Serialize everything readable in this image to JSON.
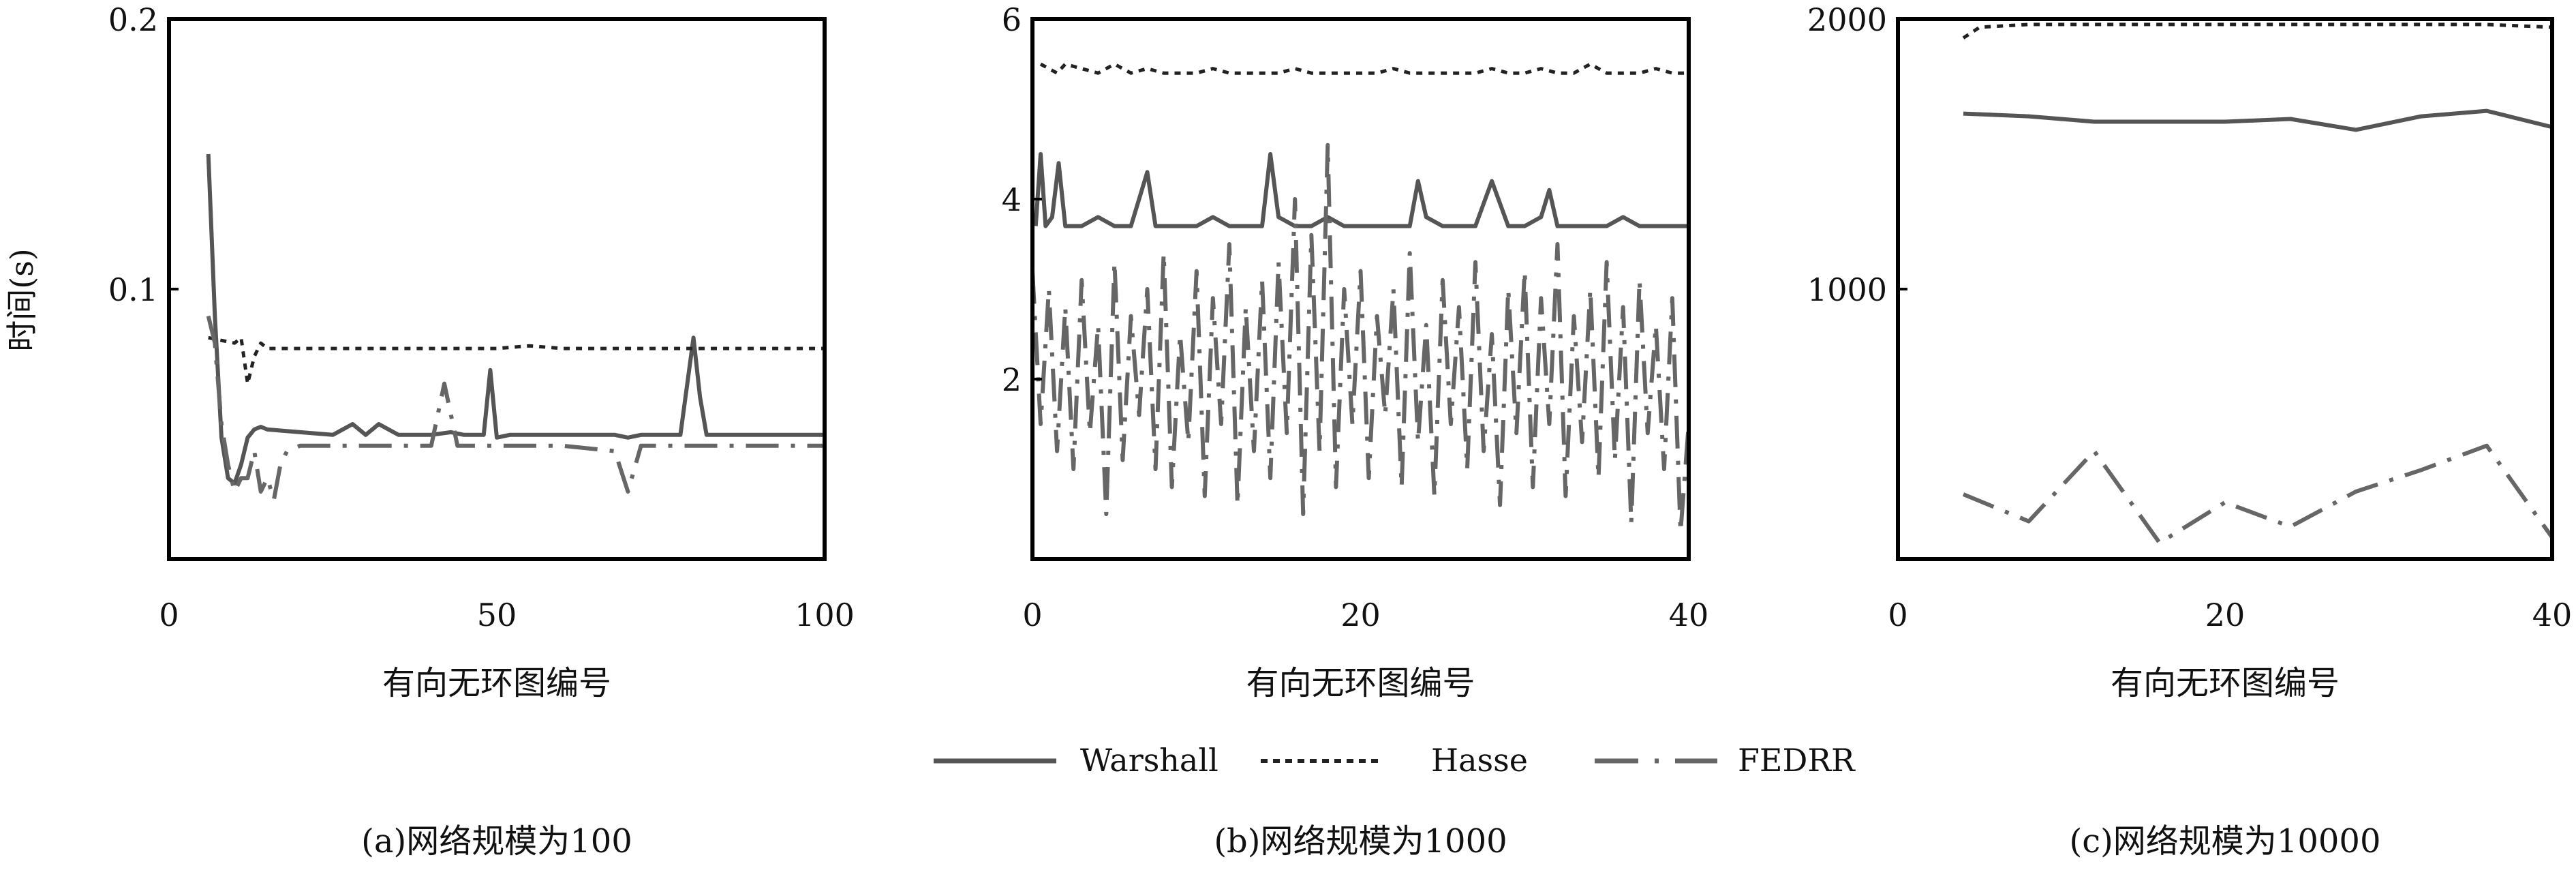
{
  "figure": {
    "ylabel": "时间(s)",
    "legend": [
      {
        "name": "Warshall",
        "style": "solid"
      },
      {
        "name": "Hasse",
        "style": "dotted"
      },
      {
        "name": "FEDRR",
        "style": "dashdot"
      }
    ],
    "colors": {
      "Warshall": "#555555",
      "Hasse": "#222222",
      "FEDRR": "#666666",
      "frame": "#000000"
    }
  },
  "chart_data": [
    {
      "type": "line",
      "title": "(a)网络规模为100",
      "xlabel": "有向无环图编号",
      "ylabel": "时间(s)",
      "xlim": [
        0,
        100
      ],
      "ylim": [
        0,
        0.2
      ],
      "xticks": [
        "0",
        "50",
        "100"
      ],
      "yticks": [
        {
          "v": 0.1,
          "label": "0.1"
        },
        {
          "v": 0.2,
          "label": "0.2"
        }
      ],
      "series": [
        {
          "name": "Warshall",
          "x": [
            6,
            7,
            8,
            9,
            10,
            11,
            12,
            13,
            14,
            15,
            20,
            25,
            28,
            30,
            32,
            35,
            40,
            43,
            45,
            48,
            49,
            50,
            52,
            55,
            60,
            65,
            68,
            70,
            72,
            75,
            78,
            80,
            81,
            82,
            85,
            90,
            95,
            100
          ],
          "y": [
            0.15,
            0.09,
            0.045,
            0.03,
            0.028,
            0.035,
            0.045,
            0.048,
            0.049,
            0.048,
            0.047,
            0.046,
            0.05,
            0.046,
            0.05,
            0.046,
            0.046,
            0.047,
            0.046,
            0.046,
            0.07,
            0.045,
            0.046,
            0.046,
            0.046,
            0.046,
            0.046,
            0.045,
            0.046,
            0.046,
            0.046,
            0.082,
            0.06,
            0.046,
            0.046,
            0.046,
            0.046,
            0.046
          ]
        },
        {
          "name": "Hasse",
          "x": [
            6,
            10,
            11,
            12,
            13,
            14,
            15,
            16,
            20,
            30,
            40,
            50,
            55,
            60,
            70,
            80,
            90,
            100
          ],
          "y": [
            0.082,
            0.08,
            0.082,
            0.065,
            0.075,
            0.08,
            0.078,
            0.078,
            0.078,
            0.078,
            0.078,
            0.078,
            0.079,
            0.078,
            0.078,
            0.078,
            0.078,
            0.078
          ]
        },
        {
          "name": "FEDRR",
          "x": [
            6,
            7,
            8,
            9,
            10,
            11,
            12,
            13,
            14,
            15,
            16,
            17,
            18,
            20,
            30,
            40,
            42,
            44,
            50,
            60,
            68,
            70,
            72,
            75,
            80,
            90,
            100
          ],
          "y": [
            0.09,
            0.08,
            0.05,
            0.035,
            0.025,
            0.03,
            0.03,
            0.04,
            0.025,
            0.03,
            0.022,
            0.035,
            0.04,
            0.042,
            0.042,
            0.042,
            0.065,
            0.042,
            0.042,
            0.042,
            0.04,
            0.025,
            0.042,
            0.042,
            0.042,
            0.042,
            0.042
          ]
        }
      ]
    },
    {
      "type": "line",
      "title": "(b)网络规模为1000",
      "xlabel": "有向无环图编号",
      "xlim": [
        0,
        40
      ],
      "ylim": [
        0,
        6
      ],
      "xticks": [
        "0",
        "20",
        "40"
      ],
      "yticks": [
        {
          "v": 2,
          "label": "2"
        },
        {
          "v": 4,
          "label": "4"
        },
        {
          "v": 6,
          "label": "6"
        }
      ],
      "series": [
        {
          "name": "Warshall",
          "x": [
            0.2,
            0.5,
            0.8,
            1.2,
            1.6,
            2,
            3,
            4,
            5,
            6,
            7,
            7.5,
            8,
            9,
            10,
            11,
            12,
            13,
            14,
            14.5,
            15,
            16,
            17,
            18,
            19,
            20,
            21,
            22,
            23,
            23.5,
            24,
            25,
            26,
            27,
            28,
            29,
            30,
            31,
            31.5,
            32,
            33,
            34,
            35,
            36,
            37,
            38,
            39,
            40
          ],
          "y": [
            3.7,
            4.5,
            3.7,
            3.8,
            4.4,
            3.7,
            3.7,
            3.8,
            3.7,
            3.7,
            4.3,
            3.7,
            3.7,
            3.7,
            3.7,
            3.8,
            3.7,
            3.7,
            3.7,
            4.5,
            3.8,
            3.7,
            3.7,
            3.8,
            3.7,
            3.7,
            3.7,
            3.7,
            3.7,
            4.2,
            3.8,
            3.7,
            3.7,
            3.7,
            4.2,
            3.7,
            3.7,
            3.8,
            4.1,
            3.7,
            3.7,
            3.7,
            3.7,
            3.8,
            3.7,
            3.7,
            3.7,
            3.7
          ]
        },
        {
          "name": "Hasse",
          "x": [
            0.5,
            1.5,
            2,
            3,
            4,
            5,
            6,
            7,
            8,
            9,
            10,
            11,
            12,
            13,
            14,
            15,
            16,
            17,
            18,
            19,
            20,
            21,
            22,
            23,
            24,
            25,
            26,
            27,
            28,
            29,
            30,
            31,
            32,
            33,
            34,
            35,
            36,
            37,
            38,
            39,
            40
          ],
          "y": [
            5.5,
            5.4,
            5.5,
            5.45,
            5.4,
            5.5,
            5.4,
            5.45,
            5.4,
            5.4,
            5.4,
            5.45,
            5.4,
            5.4,
            5.4,
            5.4,
            5.45,
            5.4,
            5.4,
            5.4,
            5.4,
            5.4,
            5.45,
            5.4,
            5.4,
            5.4,
            5.4,
            5.4,
            5.45,
            5.4,
            5.4,
            5.45,
            5.4,
            5.4,
            5.5,
            5.4,
            5.4,
            5.4,
            5.45,
            5.4,
            5.4
          ]
        },
        {
          "name": "FEDRR",
          "x": [
            0,
            0.5,
            1,
            1.5,
            2,
            2.5,
            3,
            3.5,
            4,
            4.5,
            5,
            5.5,
            6,
            6.5,
            7,
            7.5,
            8,
            8.5,
            9,
            9.5,
            10,
            10.5,
            11,
            11.5,
            12,
            12.5,
            13,
            13.5,
            14,
            14.5,
            15,
            15.5,
            16,
            16.5,
            17,
            17.5,
            18,
            18.5,
            19,
            19.5,
            20,
            20.5,
            21,
            21.5,
            22,
            22.5,
            23,
            23.5,
            24,
            24.5,
            25,
            25.5,
            26,
            26.5,
            27,
            27.5,
            28,
            28.5,
            29,
            29.5,
            30,
            30.5,
            31,
            31.5,
            32,
            32.5,
            33,
            33.5,
            34,
            34.5,
            35,
            35.5,
            36,
            36.5,
            37,
            37.5,
            38,
            38.5,
            39,
            39.5,
            40
          ],
          "y": [
            3.2,
            1.5,
            3.0,
            1.2,
            2.8,
            1.0,
            3.1,
            1.4,
            2.6,
            0.5,
            3.3,
            1.1,
            2.7,
            1.6,
            3.0,
            1.0,
            3.4,
            0.8,
            2.5,
            1.3,
            3.2,
            0.7,
            2.9,
            1.5,
            3.5,
            0.6,
            2.8,
            1.2,
            3.1,
            0.9,
            3.3,
            1.4,
            4.0,
            0.5,
            3.6,
            1.2,
            4.6,
            0.8,
            3.0,
            1.5,
            3.2,
            0.9,
            2.7,
            1.6,
            3.0,
            0.8,
            3.4,
            1.3,
            2.6,
            0.7,
            3.1,
            1.5,
            2.8,
            1.0,
            3.3,
            1.2,
            2.5,
            0.6,
            3.0,
            1.4,
            3.2,
            0.8,
            2.9,
            1.5,
            3.5,
            0.7,
            2.7,
            1.3,
            3.0,
            0.9,
            3.3,
            1.1,
            2.8,
            0.4,
            3.1,
            1.4,
            2.6,
            1.0,
            2.9,
            0.3,
            1.5
          ]
        }
      ]
    },
    {
      "type": "line",
      "title": "(c)网络规模为10000",
      "xlabel": "有向无环图编号",
      "xlim": [
        0,
        40
      ],
      "ylim": [
        0,
        2000
      ],
      "xticks": [
        "0",
        "20",
        "40"
      ],
      "yticks": [
        {
          "v": 1000,
          "label": "1000"
        },
        {
          "v": 2000,
          "label": "2000"
        }
      ],
      "series": [
        {
          "name": "Warshall",
          "x": [
            4,
            8,
            12,
            16,
            20,
            24,
            28,
            32,
            36,
            40
          ],
          "y": [
            1650,
            1640,
            1620,
            1620,
            1620,
            1630,
            1590,
            1640,
            1660,
            1600
          ]
        },
        {
          "name": "Hasse",
          "x": [
            4,
            4.5,
            5,
            8,
            12,
            16,
            20,
            24,
            28,
            32,
            36,
            40
          ],
          "y": [
            1930,
            1950,
            1970,
            1980,
            1980,
            1980,
            1980,
            1980,
            1980,
            1980,
            1980,
            1970
          ]
        },
        {
          "name": "FEDRR",
          "x": [
            4,
            8,
            12,
            16,
            20,
            24,
            28,
            32,
            36,
            40
          ],
          "y": [
            240,
            140,
            400,
            60,
            210,
            120,
            250,
            330,
            420,
            80
          ]
        }
      ]
    }
  ]
}
